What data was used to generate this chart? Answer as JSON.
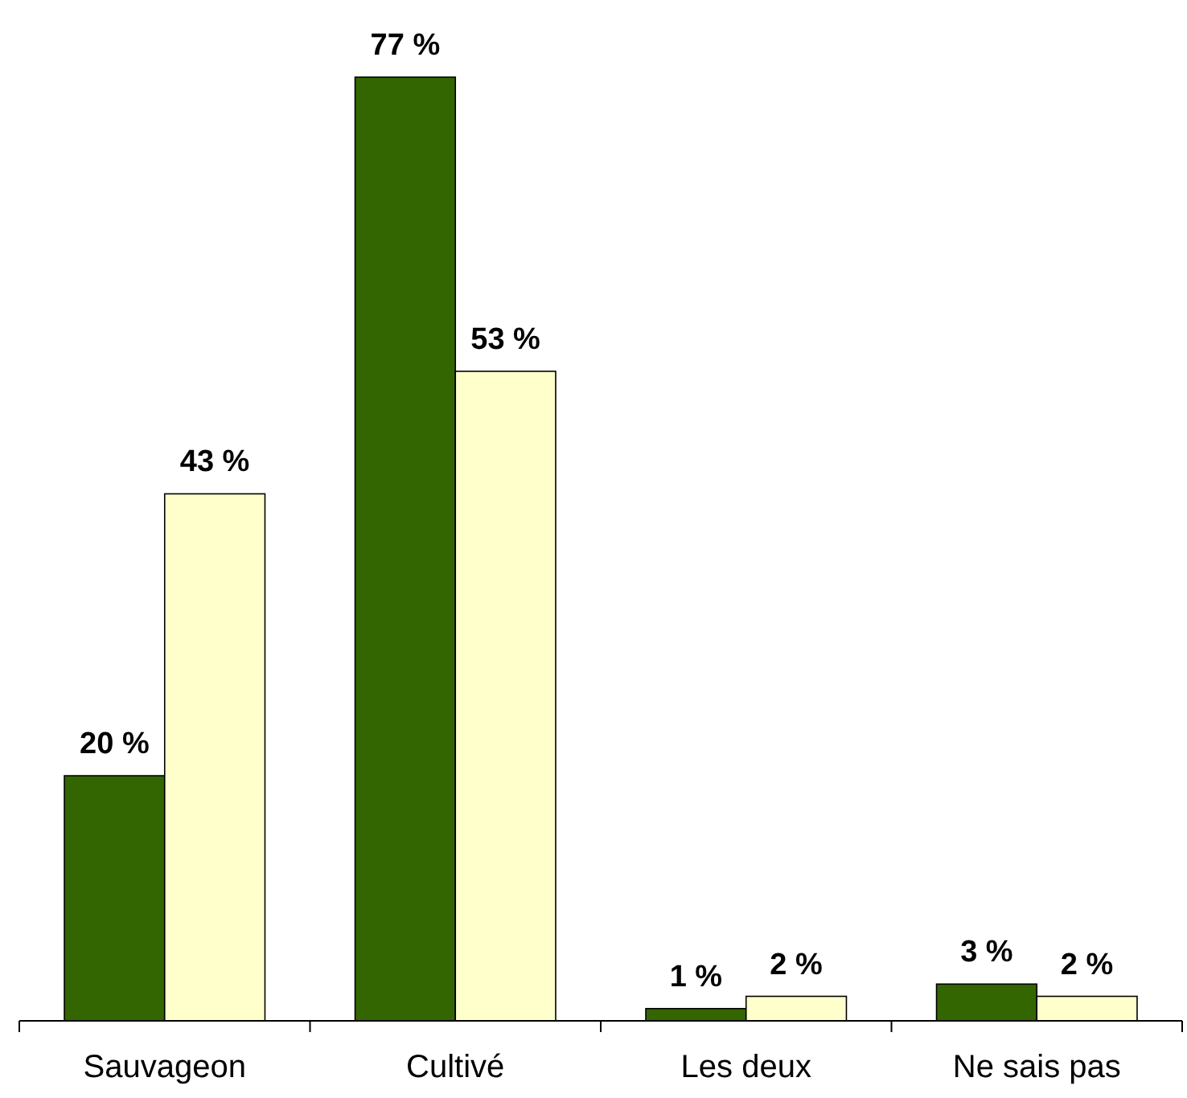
{
  "chart_data": {
    "type": "bar",
    "categories": [
      "Sauvageon",
      "Cultivé",
      "Les deux",
      "Ne sais pas"
    ],
    "series": [
      {
        "color": "#336600",
        "values": [
          20,
          77,
          1,
          3
        ],
        "value_labels": [
          "20 %",
          "77 %",
          "1 %",
          "3 %"
        ]
      },
      {
        "color": "#ffffcc",
        "values": [
          43,
          53,
          2,
          2
        ],
        "value_labels": [
          "43 %",
          "53 %",
          "2 %",
          "2 %"
        ]
      }
    ]
  }
}
